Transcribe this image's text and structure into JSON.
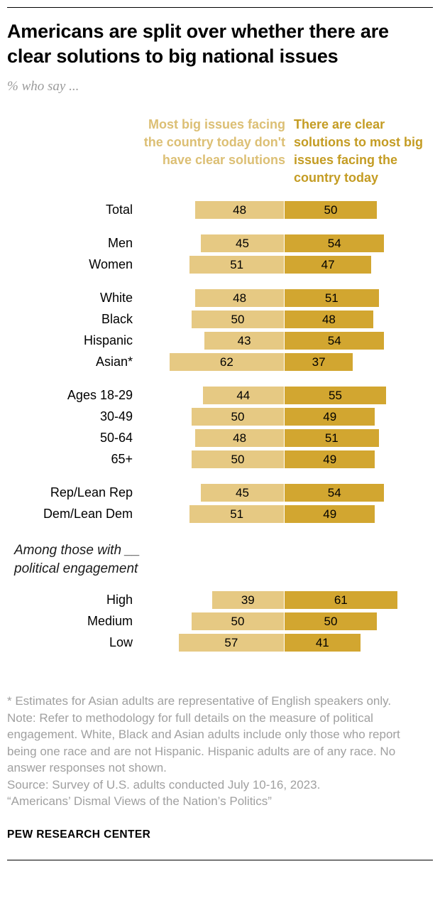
{
  "page": {
    "title": "Americans are split over whether there are clear solutions to big national issues",
    "subtitle": "% who say ...",
    "brand": "PEW RESEARCH CENTER"
  },
  "chart_data": {
    "type": "bar",
    "variant": "paired-horizontal-diverging",
    "unit": "%",
    "legend_position": "column-headers-top",
    "axis": "no visible axis; values shown as data labels inside bars",
    "xlim": [
      0,
      62
    ],
    "series": [
      {
        "name": "Most big issues facing the country today don't have clear solutions",
        "color": "#e6c983",
        "header_color": "#dcbf74",
        "values": [
          48,
          45,
          51,
          48,
          50,
          43,
          62,
          44,
          50,
          48,
          50,
          45,
          51,
          39,
          50,
          57
        ]
      },
      {
        "name": "There are clear solutions to most big issues facing the country today",
        "color": "#d2a630",
        "header_color": "#c49c23",
        "values": [
          50,
          54,
          47,
          51,
          48,
          54,
          37,
          55,
          49,
          51,
          49,
          54,
          49,
          61,
          50,
          41
        ]
      }
    ],
    "categories": [
      "Total",
      "Men",
      "Women",
      "White",
      "Black",
      "Hispanic",
      "Asian*",
      "Ages 18-29",
      "30-49",
      "50-64",
      "65+",
      "Rep/Lean Rep",
      "Dem/Lean Dem",
      "High",
      "Medium",
      "Low"
    ],
    "groups": [
      {
        "rows": [
          {
            "label": "Total",
            "left": 48,
            "right": 50
          }
        ]
      },
      {
        "rows": [
          {
            "label": "Men",
            "left": 45,
            "right": 54
          },
          {
            "label": "Women",
            "left": 51,
            "right": 47
          }
        ]
      },
      {
        "rows": [
          {
            "label": "White",
            "left": 48,
            "right": 51
          },
          {
            "label": "Black",
            "left": 50,
            "right": 48
          },
          {
            "label": "Hispanic",
            "left": 43,
            "right": 54
          },
          {
            "label": "Asian*",
            "left": 62,
            "right": 37
          }
        ]
      },
      {
        "rows": [
          {
            "label": "Ages 18-29",
            "left": 44,
            "right": 55
          },
          {
            "label": "30-49",
            "left": 50,
            "right": 49
          },
          {
            "label": "50-64",
            "left": 48,
            "right": 51
          },
          {
            "label": "65+",
            "left": 50,
            "right": 49
          }
        ]
      },
      {
        "rows": [
          {
            "label": "Rep/Lean Rep",
            "left": 45,
            "right": 54
          },
          {
            "label": "Dem/Lean Dem",
            "left": 51,
            "right": 49
          }
        ]
      },
      {
        "heading": "Among those with __ political engagement",
        "rows": [
          {
            "label": "High",
            "left": 39,
            "right": 61
          },
          {
            "label": "Medium",
            "left": 50,
            "right": 50
          },
          {
            "label": "Low",
            "left": 57,
            "right": 41
          }
        ]
      }
    ]
  },
  "footnotes": [
    "* Estimates for Asian adults are representative of English speakers only.",
    "Note: Refer to methodology for full details on the measure of political engagement. White, Black and Asian adults include only those who report being one race and are not Hispanic. Hispanic adults are of any race. No answer responses not shown.",
    "Source: Survey of U.S. adults conducted July 10-16, 2023.",
    "“Americans’ Dismal Views of the Nation’s Politics”"
  ]
}
